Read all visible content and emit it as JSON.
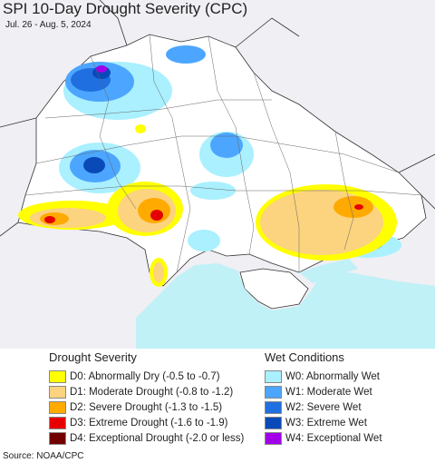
{
  "title": "SPI 10-Day Drought Severity (CPC)",
  "subtitle": "Jul. 26 - Aug. 5, 2024",
  "source": "Source: NOAA/CPC",
  "colors": {
    "sea": "#bff1f7",
    "land": "#ffffff",
    "outside": "#efeff4"
  },
  "legend": {
    "drought": {
      "heading": "Drought Severity",
      "items": [
        {
          "label": "D0: Abnormally Dry (-0.5 to -0.7)",
          "color": "#ffff00"
        },
        {
          "label": "D1: Moderate Drought (-0.8 to -1.2)",
          "color": "#fcd37f"
        },
        {
          "label": "D2: Severe Drought (-1.3 to -1.5)",
          "color": "#ffaa00"
        },
        {
          "label": "D3: Extreme Drought (-1.6 to -1.9)",
          "color": "#e60000"
        },
        {
          "label": "D4: Exceptional Drought (-2.0 or less)",
          "color": "#730000"
        }
      ]
    },
    "wet": {
      "heading": "Wet Conditions",
      "items": [
        {
          "label": "W0: Abnormally Wet",
          "color": "#aaf0ff"
        },
        {
          "label": "W1: Moderate Wet",
          "color": "#4ca6ff"
        },
        {
          "label": "W2: Severe Wet",
          "color": "#1f6fe0"
        },
        {
          "label": "W3: Extreme Wet",
          "color": "#0a4ab8"
        },
        {
          "label": "W4: Exceptional Wet",
          "color": "#a200e8"
        }
      ]
    }
  }
}
